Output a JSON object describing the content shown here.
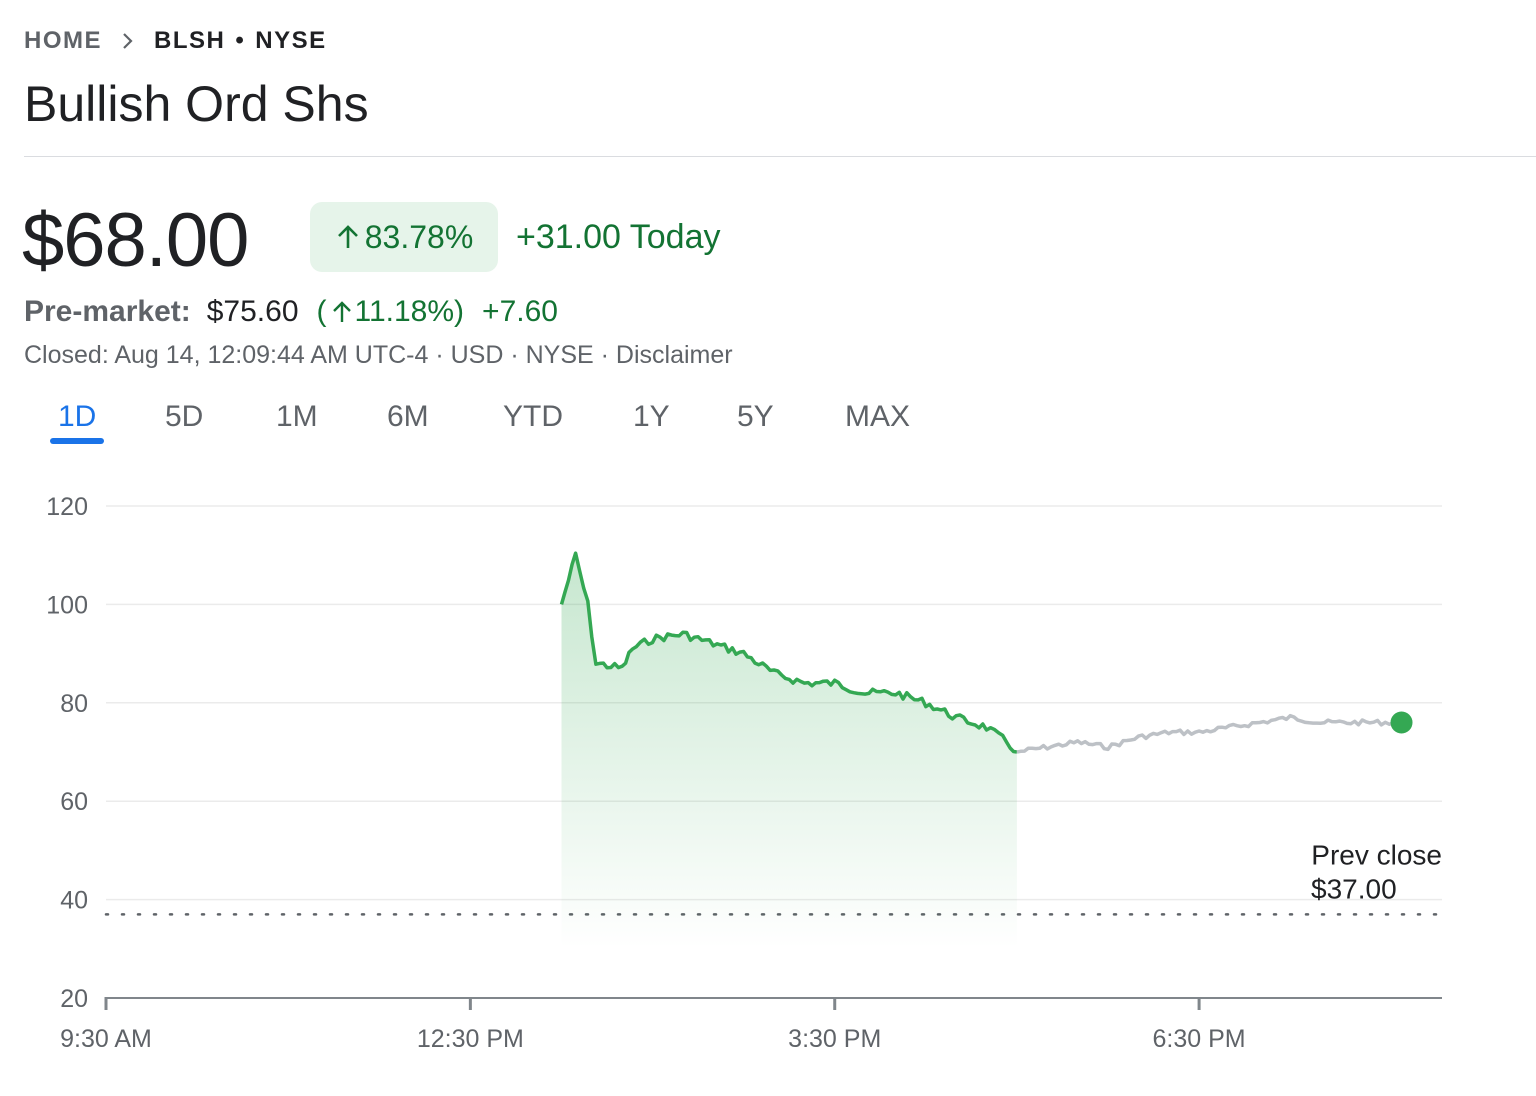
{
  "breadcrumb": {
    "home": "HOME",
    "ticker": "BLSH",
    "exchange": "NYSE"
  },
  "title": "Bullish Ord Shs",
  "quote": {
    "price": "$68.00",
    "change_pct": "83.78%",
    "change_today": "+31.00 Today"
  },
  "premarket": {
    "label": "Pre-market:",
    "price": "$75.60",
    "pct": "11.18%",
    "change": "+7.60"
  },
  "closed_line": "Closed: Aug 14, 12:09:44 AM UTC-4 · USD · NYSE · Disclaimer",
  "tabs": [
    "1D",
    "5D",
    "1M",
    "6M",
    "YTD",
    "1Y",
    "5Y",
    "MAX"
  ],
  "active_tab": "1D",
  "colors": {
    "positive": "#137333",
    "line_green": "#34a853",
    "line_gray": "#bdc1c6",
    "accent": "#1a73e8",
    "badge_bg": "#e6f4ea"
  },
  "chart_data": {
    "type": "line",
    "ylim": [
      20,
      120
    ],
    "yticks": [
      "120",
      "100",
      "80",
      "60",
      "40",
      "20"
    ],
    "xticks": [
      "9:30 AM",
      "12:30 PM",
      "3:30 PM",
      "6:30 PM"
    ],
    "prev_close": {
      "label": "Prev close",
      "value_label": "$37.00",
      "value": 37
    },
    "series": [
      {
        "segment": "regular",
        "x": [
          "1:15 PM",
          "1:22 PM",
          "1:28 PM",
          "1:32 PM",
          "1:45 PM",
          "1:50 PM",
          "2:00 PM",
          "2:15 PM",
          "2:30 PM",
          "2:45 PM",
          "3:00 PM",
          "3:15 PM",
          "3:30 PM",
          "3:45 PM",
          "4:00 PM",
          "4:15 PM",
          "4:30 PM",
          "4:45 PM",
          "4:55 PM",
          "5:00 PM"
        ],
        "values": [
          100,
          110,
          100,
          88,
          87,
          91,
          93,
          94,
          92,
          90,
          86,
          84,
          84,
          82,
          82,
          80,
          77,
          75,
          72,
          70
        ]
      },
      {
        "segment": "after-hours",
        "x": [
          "5:00 PM",
          "5:15 PM",
          "5:30 PM",
          "5:45 PM",
          "6:00 PM",
          "6:15 PM",
          "6:30 PM",
          "6:45 PM",
          "7:00 PM",
          "7:15 PM",
          "7:30 PM",
          "7:45 PM",
          "8:00 PM",
          "8:10 PM"
        ],
        "values": [
          70,
          71,
          72,
          71,
          73,
          74,
          74,
          75,
          76,
          77,
          76,
          76,
          76,
          76
        ]
      }
    ]
  }
}
